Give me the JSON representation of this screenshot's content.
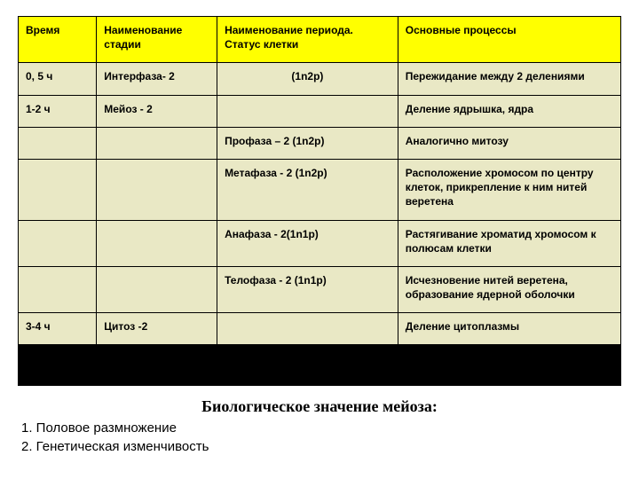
{
  "table": {
    "headers": [
      "Время",
      "Наименование стадии",
      "Наименование периода. Статус клетки",
      "Основные процессы"
    ],
    "rows": [
      {
        "c1": "0, 5 ч",
        "c2": "Интерфаза- 2",
        "c3": "(1n2p)",
        "c3align": "center",
        "c4": "Пережидание между 2 делениями"
      },
      {
        "c1": "1-2 ч",
        "c2": "Мейоз - 2",
        "c3": "",
        "c4": "Деление ядрышка, ядра"
      },
      {
        "c1": "",
        "c2": "",
        "c3": "Профаза – 2 (1n2p)",
        "c4": "Аналогично митозу"
      },
      {
        "c1": "",
        "c2": "",
        "c3": "Метафаза - 2 (1n2p)",
        "c4": "Расположение хромосом по центру клеток, прикрепление к ним нитей веретена"
      },
      {
        "c1": "",
        "c2": "",
        "c3": "Анафаза - 2(1n1p)",
        "c4": "Растягивание хроматид хромосом к полюсам клетки"
      },
      {
        "c1": "",
        "c2": "",
        "c3": "Телофаза - 2 (1n1p)",
        "c4": "Исчезновение нитей веретена, образование ядерной оболочки"
      },
      {
        "c1": "3-4 ч",
        "c2": "Цитоз -2",
        "c3": "",
        "c4": "Деление цитоплазмы"
      }
    ]
  },
  "footer": {
    "title": "Биологическое значение мейоза:",
    "items": [
      "1. Половое размножение",
      "2. Генетическая изменчивость"
    ]
  },
  "colors": {
    "header_bg": "#ffff00",
    "cell_bg": "#e9e8c5",
    "black": "#000000",
    "page_bg": "#ffffff"
  }
}
